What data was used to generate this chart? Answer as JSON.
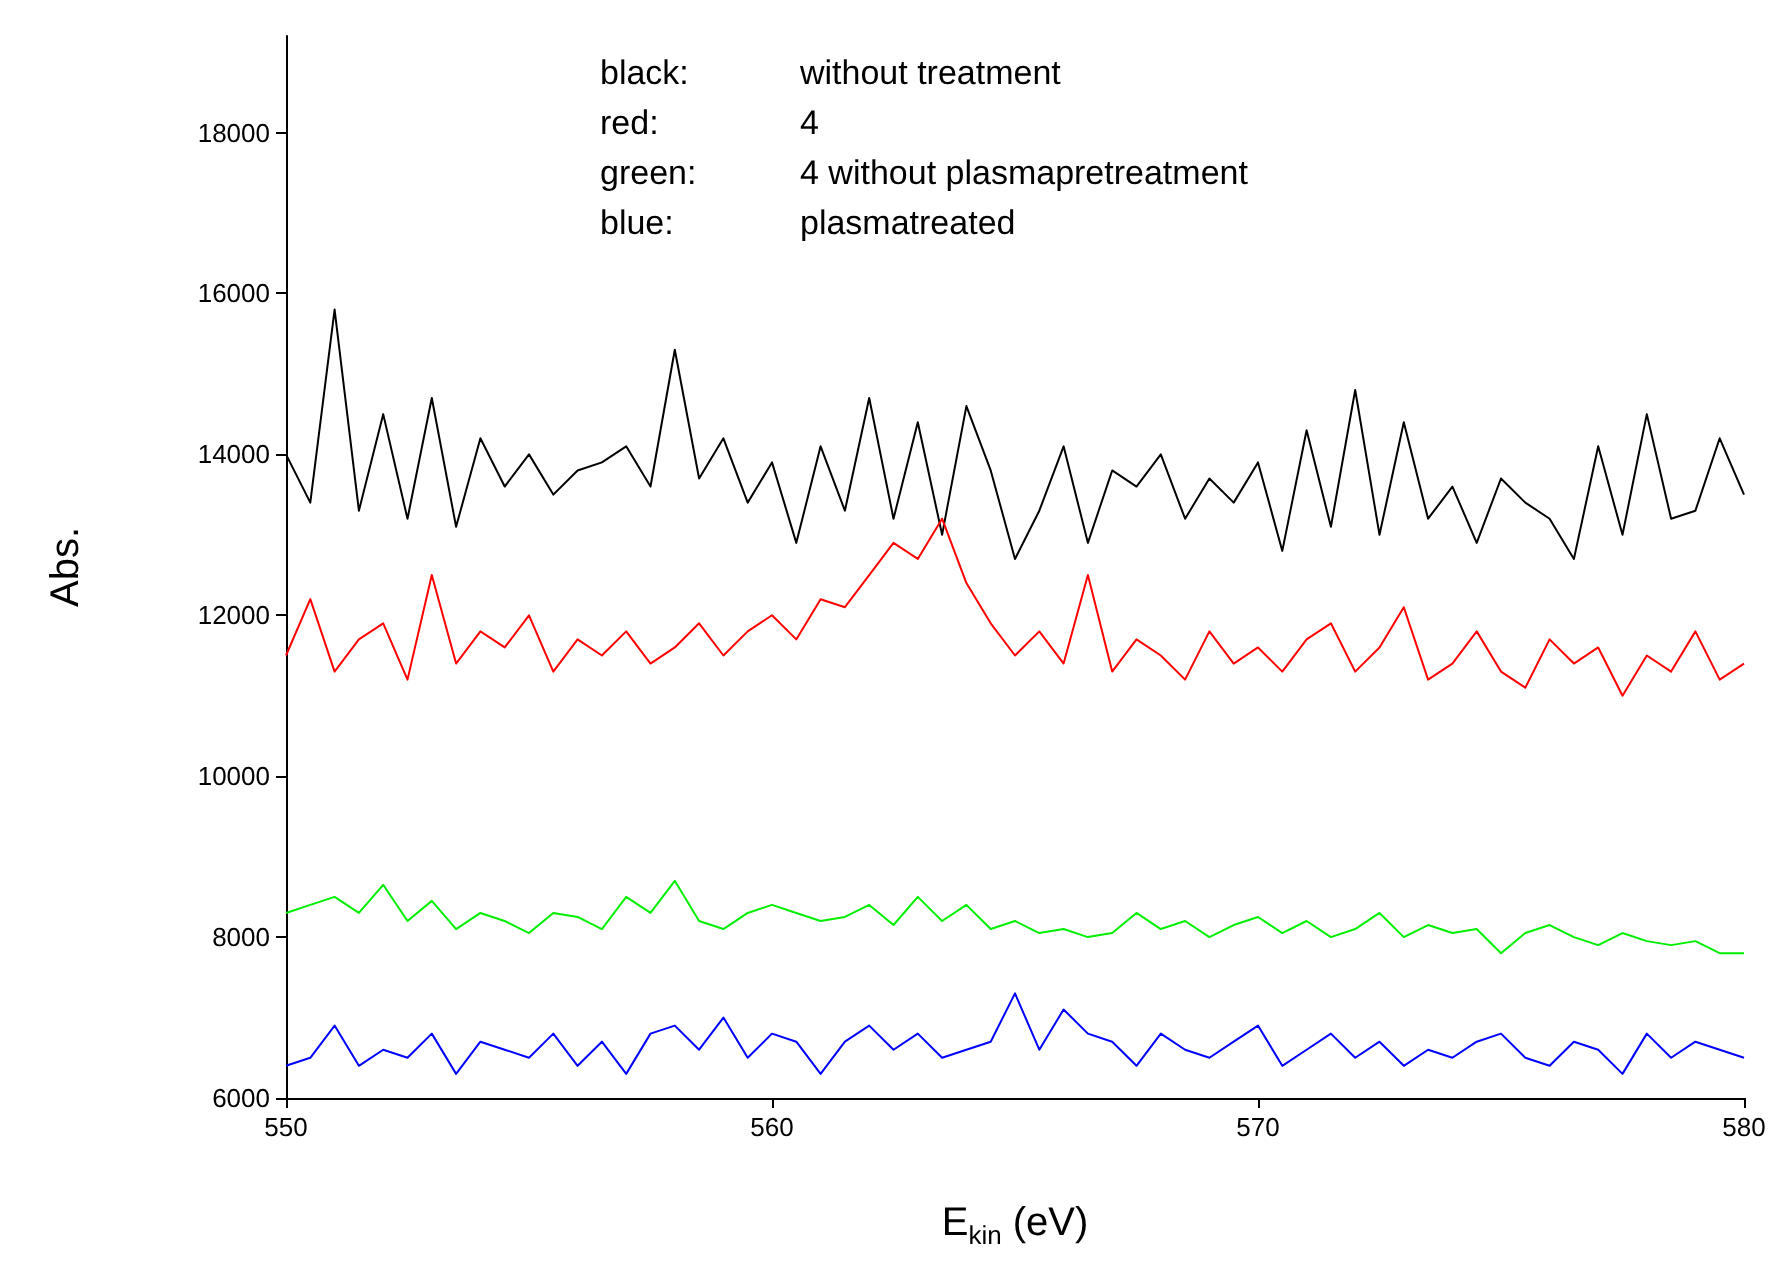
{
  "chart_data": {
    "type": "line",
    "xlabel": "E$_{kin}$ (eV)",
    "ylabel": "Abs.",
    "annotations": [
      "black: without treatment",
      "red: 4",
      "green: 4 without plasmapretreatment",
      "blue: plasmatreated"
    ],
    "x": [
      550,
      550.5,
      551,
      551.5,
      552,
      552.5,
      553,
      553.5,
      554,
      554.5,
      555,
      555.5,
      556,
      556.5,
      557,
      557.5,
      558,
      558.5,
      559,
      559.5,
      560,
      560.5,
      561,
      561.5,
      562,
      562.5,
      563,
      563.5,
      564,
      564.5,
      565,
      565.5,
      566,
      566.5,
      567,
      567.5,
      568,
      568.5,
      569,
      569.5,
      570,
      570.5,
      571,
      571.5,
      572,
      572.5,
      573,
      573.5,
      574,
      574.5,
      575,
      575.5,
      576,
      576.5,
      577,
      577.5,
      578,
      578.5,
      579,
      579.5,
      580
    ],
    "series": [
      {
        "color": "#000000",
        "values": [
          14000,
          13400,
          15800,
          13300,
          14500,
          13200,
          14700,
          13100,
          14200,
          13600,
          14000,
          13500,
          13800,
          13900,
          14100,
          13600,
          15300,
          13700,
          14200,
          13400,
          13900,
          12900,
          14100,
          13300,
          14700,
          13200,
          14400,
          13000,
          14600,
          13800,
          12700,
          13300,
          14100,
          12900,
          13800,
          13600,
          14000,
          13200,
          13700,
          13400,
          13900,
          12800,
          14300,
          13100,
          14800,
          13000,
          14400,
          13200,
          13600,
          12900,
          13700,
          13400,
          13200,
          12700,
          14100,
          13000,
          14500,
          13200,
          13300,
          14200,
          13500
        ]
      },
      {
        "color": "#ff0000",
        "values": [
          11500,
          12200,
          11300,
          11700,
          11900,
          11200,
          12500,
          11400,
          11800,
          11600,
          12000,
          11300,
          11700,
          11500,
          11800,
          11400,
          11600,
          11900,
          11500,
          11800,
          12000,
          11700,
          12200,
          12100,
          12500,
          12900,
          12700,
          13200,
          12400,
          11900,
          11500,
          11800,
          11400,
          12500,
          11300,
          11700,
          11500,
          11200,
          11800,
          11400,
          11600,
          11300,
          11700,
          11900,
          11300,
          11600,
          12100,
          11200,
          11400,
          11800,
          11300,
          11100,
          11700,
          11400,
          11600,
          11000,
          11500,
          11300,
          11800,
          11200,
          11400
        ]
      },
      {
        "color": "#00ee00",
        "values": [
          8300,
          8400,
          8500,
          8300,
          8650,
          8200,
          8450,
          8100,
          8300,
          8200,
          8050,
          8300,
          8250,
          8100,
          8500,
          8300,
          8700,
          8200,
          8100,
          8300,
          8400,
          8300,
          8200,
          8250,
          8400,
          8150,
          8500,
          8200,
          8400,
          8100,
          8200,
          8050,
          8100,
          8000,
          8050,
          8300,
          8100,
          8200,
          8000,
          8150,
          8250,
          8050,
          8200,
          8000,
          8100,
          8300,
          8000,
          8150,
          8050,
          8100,
          7800,
          8050,
          8150,
          8000,
          7900,
          8050,
          7950,
          7900,
          7950,
          7800,
          7800
        ]
      },
      {
        "color": "#0000ff",
        "values": [
          6400,
          6500,
          6900,
          6400,
          6600,
          6500,
          6800,
          6300,
          6700,
          6600,
          6500,
          6800,
          6400,
          6700,
          6300,
          6800,
          6900,
          6600,
          7000,
          6500,
          6800,
          6700,
          6300,
          6700,
          6900,
          6600,
          6800,
          6500,
          6600,
          6700,
          7300,
          6600,
          7100,
          6800,
          6700,
          6400,
          6800,
          6600,
          6500,
          6700,
          6900,
          6400,
          6600,
          6800,
          6500,
          6700,
          6400,
          6600,
          6500,
          6700,
          6800,
          6500,
          6400,
          6700,
          6600,
          6300,
          6800,
          6500,
          6700,
          6600,
          6500
        ]
      }
    ],
    "xlim": [
      550,
      580
    ],
    "xticks": [
      550,
      560,
      570,
      580
    ],
    "ylim": [
      6000,
      19200
    ],
    "yticks": [
      6000,
      8000,
      10000,
      12000,
      14000,
      16000,
      18000
    ],
    "grid": false,
    "marker": "none",
    "line_style": "solid"
  }
}
